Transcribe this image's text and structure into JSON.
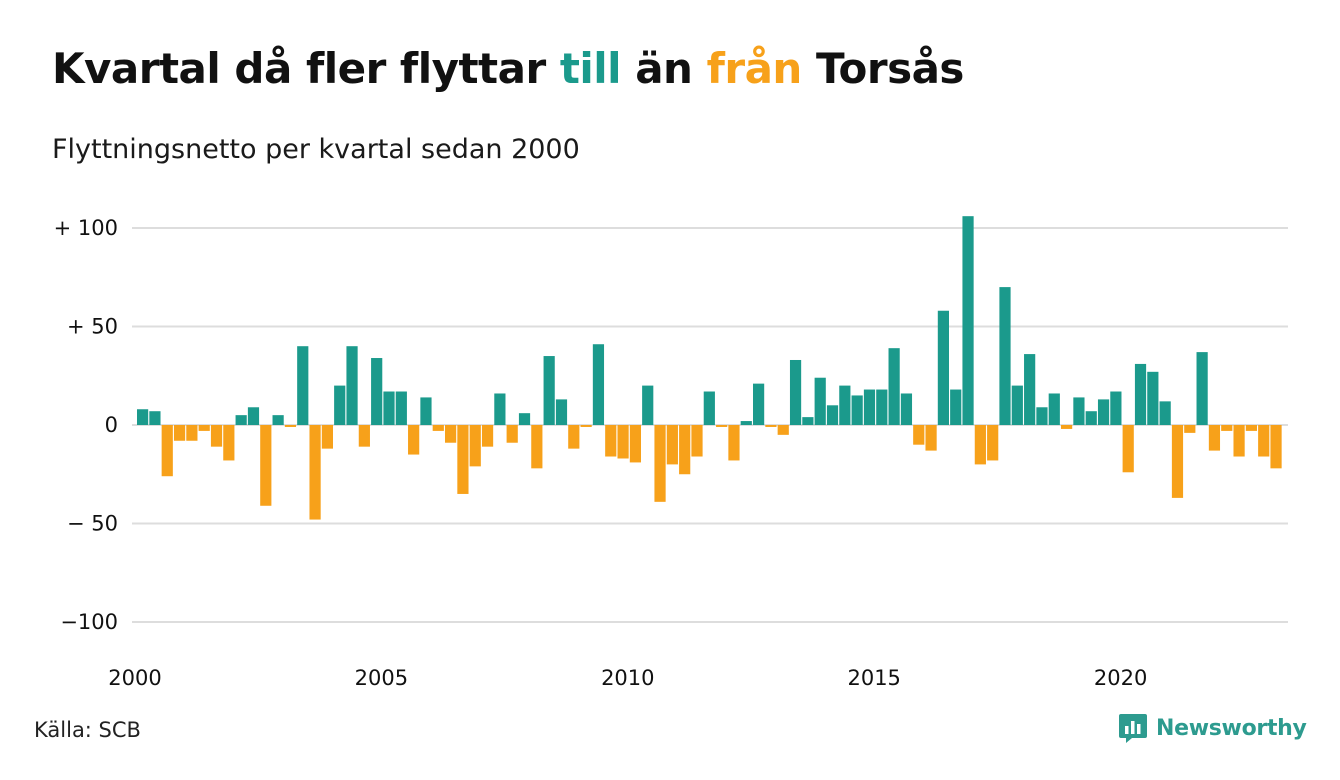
{
  "header": {
    "title_part1": "Kvartal då fler flyttar ",
    "title_to": "till",
    "title_part2": " än ",
    "title_from": "från",
    "title_part3": " Torsås",
    "subtitle": "Flyttningsnetto per kvartal sedan 2000"
  },
  "footer": {
    "source": "Källa: SCB",
    "brand": "Newsworthy"
  },
  "colors": {
    "positive": "#1b9a8c",
    "negative": "#f7a11a",
    "grid": "#dddddd"
  },
  "icons": {
    "brand_logo": "bar-chart-bubble-icon"
  },
  "chart_data": {
    "type": "bar",
    "title": "Kvartal då fler flyttar till än från Torsås",
    "subtitle": "Flyttningsnetto per kvartal sedan 2000",
    "xlabel": "",
    "ylabel": "",
    "ylim": [
      -100,
      100
    ],
    "grid": true,
    "y_ticks": [
      {
        "value": 100,
        "label": "+ 100"
      },
      {
        "value": 50,
        "label": "+  50"
      },
      {
        "value": 0,
        "label": "0"
      },
      {
        "value": -50,
        "label": "− 50"
      },
      {
        "value": -100,
        "label": "−100"
      }
    ],
    "x_ticks": [
      "2000",
      "2005",
      "2010",
      "2015",
      "2020"
    ],
    "start_year": 2000,
    "values": [
      8,
      7,
      -26,
      -8,
      -8,
      -3,
      -11,
      -18,
      5,
      9,
      -41,
      5,
      -1,
      40,
      -48,
      -12,
      20,
      40,
      -11,
      34,
      17,
      17,
      -15,
      14,
      -3,
      -9,
      -35,
      -21,
      -11,
      16,
      -9,
      6,
      -22,
      35,
      13,
      -12,
      -1,
      41,
      -16,
      -17,
      -19,
      20,
      -39,
      -20,
      -25,
      -16,
      17,
      -1,
      -18,
      2,
      21,
      -1,
      -5,
      33,
      4,
      24,
      10,
      20,
      15,
      18,
      18,
      39,
      16,
      -10,
      -13,
      58,
      18,
      106,
      -20,
      -18,
      70,
      20,
      36,
      9,
      16,
      -2,
      14,
      7,
      13,
      17,
      -24,
      31,
      27,
      12,
      -37,
      -4,
      37,
      -13,
      -3,
      -16,
      -3,
      -16,
      -22
    ]
  }
}
